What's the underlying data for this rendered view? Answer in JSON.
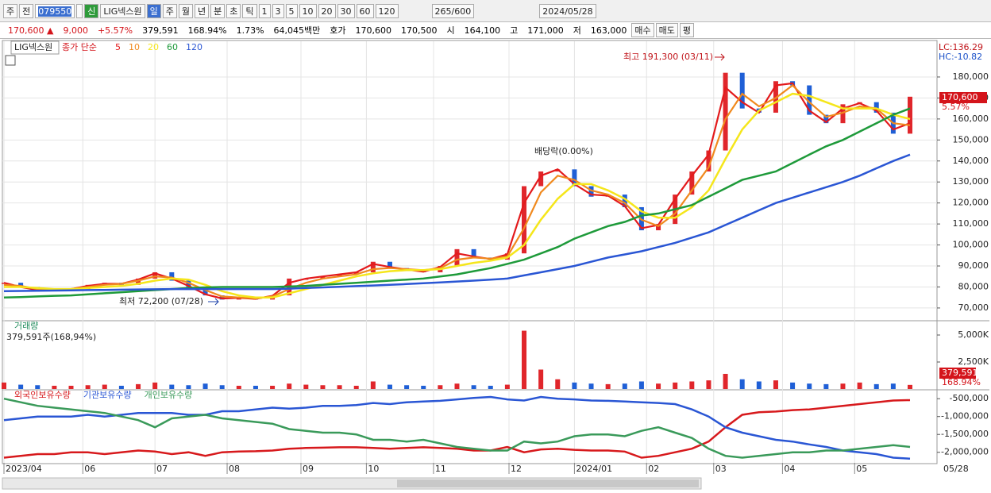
{
  "toolbar": {
    "market": "주",
    "prev": "전",
    "code": "079550",
    "badge": "신",
    "name": "LIG넥스원",
    "periods": [
      "일",
      "주",
      "월",
      "년",
      "분",
      "초",
      "틱"
    ],
    "intervals": [
      "1",
      "3",
      "5",
      "10",
      "20",
      "30",
      "60",
      "120"
    ],
    "count": "265",
    "max": "/600",
    "date": "2024/05/28"
  },
  "infobar": {
    "price": "170,600 ▲",
    "change": "9,000",
    "rate": "+5.57%",
    "volume": "379,591",
    "vol_rate": "168.94%",
    "turnover": "1.73%",
    "amount": "64,045백만",
    "ask_label": "호가",
    "ask": "170,600",
    "bid": "170,500",
    "open_label": "시",
    "open": "164,100",
    "high_label": "고",
    "high": "171,000",
    "low_label": "저",
    "low": "163,000",
    "buy": "매수",
    "sell": "매도",
    "avg": "평"
  },
  "chart_data": [
    {
      "type": "candle-line",
      "legend_prefix": "종가 단순",
      "xlim": [
        0,
        54
      ],
      "xticks": [
        {
          "value": 0,
          "label": "2023/04"
        },
        {
          "value": 4.7,
          "label": "06"
        },
        {
          "value": 9.0,
          "label": "07"
        },
        {
          "value": 13.3,
          "label": "08"
        },
        {
          "value": 17.7,
          "label": "09"
        },
        {
          "value": 21.6,
          "label": "10"
        },
        {
          "value": 25.6,
          "label": "11"
        },
        {
          "value": 30.1,
          "label": "12"
        },
        {
          "value": 34.0,
          "label": "2024/01"
        },
        {
          "value": 38.3,
          "label": "02"
        },
        {
          "value": 42.3,
          "label": "03"
        },
        {
          "value": 46.4,
          "label": "04"
        },
        {
          "value": 50.7,
          "label": "05"
        }
      ],
      "x_end_label": "05/28",
      "ylim": [
        64300,
        197000
      ],
      "yticks": [
        {
          "value": 70000,
          "label": "70,000"
        },
        {
          "value": 80000,
          "label": "80,000"
        },
        {
          "value": 90000,
          "label": "90,000"
        },
        {
          "value": 100000,
          "label": "100,000"
        },
        {
          "value": 110000,
          "label": "110,000"
        },
        {
          "value": 120000,
          "label": "120,000"
        },
        {
          "value": 130000,
          "label": "130,000"
        },
        {
          "value": 140000,
          "label": "140,000"
        },
        {
          "value": 150000,
          "label": "150,000"
        },
        {
          "value": 160000,
          "label": "160,000"
        },
        {
          "value": 170000,
          "label": "170,000"
        },
        {
          "value": 180000,
          "label": "180,000"
        }
      ],
      "grid": true,
      "annotations": {
        "high": "최고 191,300 (03/11)",
        "low": "최저 72,200 (07/28)",
        "dividend": "배당락(0.00%)"
      },
      "right_labels": {
        "lc": "LC:136.29",
        "hc": "HC:-10.82",
        "last": "170,600",
        "rate": "5.57%"
      },
      "series": [
        {
          "name": "LIG넥스원",
          "up_color": "#e0262b",
          "down_color": "#1f5fd6",
          "values": [
            82000,
            80000,
            78000,
            79000,
            79000,
            81000,
            82000,
            81000,
            84000,
            87000,
            83000,
            80000,
            76000,
            74000,
            75000,
            74000,
            76000,
            84000,
            84000,
            85000,
            86000,
            87000,
            92000,
            89000,
            88000,
            87000,
            90000,
            98000,
            94000,
            93000,
            96000,
            128000,
            135000,
            136000,
            128000,
            123000,
            124000,
            118000,
            107000,
            110000,
            124000,
            135000,
            145000,
            182000,
            165000,
            163000,
            178000,
            176000,
            162000,
            158000,
            167000,
            168000,
            163000,
            153000,
            170600
          ]
        },
        {
          "name": "5",
          "color": "#e31a1c",
          "values": [
            82000,
            80000,
            78500,
            78800,
            79000,
            80500,
            81500,
            81500,
            83500,
            86500,
            84000,
            80500,
            76500,
            74500,
            74800,
            74300,
            75800,
            82000,
            84000,
            85000,
            86000,
            87000,
            91000,
            89500,
            88300,
            87300,
            89500,
            96000,
            94500,
            93300,
            95500,
            120000,
            133000,
            136000,
            129000,
            124000,
            123500,
            118500,
            108000,
            109500,
            122000,
            133000,
            143000,
            175000,
            168000,
            163000,
            176000,
            177000,
            164000,
            158500,
            165000,
            167500,
            164000,
            155000,
            158000
          ]
        },
        {
          "name": "10",
          "color": "#f0891d",
          "values": [
            81000,
            80500,
            79000,
            78500,
            79000,
            80000,
            81000,
            81500,
            83000,
            85000,
            84500,
            82000,
            78500,
            75500,
            75000,
            74500,
            75500,
            79000,
            82000,
            84000,
            85000,
            86000,
            88500,
            89000,
            88500,
            88000,
            89000,
            93000,
            94000,
            93500,
            94500,
            108000,
            125000,
            133000,
            131000,
            126000,
            124000,
            120000,
            112000,
            109000,
            115000,
            126000,
            137000,
            160000,
            172000,
            166000,
            170000,
            176000,
            168000,
            161000,
            163000,
            166000,
            165000,
            158000,
            157000
          ]
        },
        {
          "name": "20",
          "color": "#f5e61b",
          "values": [
            80000,
            80000,
            79500,
            79000,
            79000,
            79500,
            80000,
            80500,
            81500,
            83000,
            84000,
            83500,
            81000,
            78000,
            76000,
            75000,
            75000,
            77000,
            79000,
            81000,
            83000,
            85000,
            86500,
            87500,
            88000,
            88000,
            88500,
            90000,
            91500,
            92500,
            94000,
            100000,
            112000,
            122000,
            129000,
            129000,
            126000,
            122000,
            116000,
            113000,
            113000,
            118000,
            126000,
            141000,
            155000,
            164000,
            168000,
            172000,
            171000,
            168000,
            165000,
            165000,
            165000,
            162000,
            160000
          ]
        },
        {
          "name": "60",
          "color": "#1e9a3a",
          "values": [
            75000,
            75200,
            75500,
            75800,
            76000,
            76500,
            77000,
            77500,
            78000,
            78500,
            79000,
            79500,
            79800,
            80000,
            80000,
            80000,
            80000,
            80200,
            80500,
            81000,
            81500,
            82000,
            82500,
            83000,
            83500,
            84000,
            85000,
            86000,
            87500,
            89000,
            91000,
            93000,
            96000,
            99000,
            103000,
            106000,
            109000,
            111000,
            114000,
            115000,
            117000,
            119000,
            123000,
            127000,
            131000,
            133000,
            135000,
            139000,
            143000,
            147000,
            150000,
            154000,
            158000,
            162000,
            165000
          ]
        },
        {
          "name": "120",
          "color": "#2a56d4",
          "values": [
            78000,
            78100,
            78200,
            78300,
            78400,
            78500,
            78600,
            78700,
            78800,
            78900,
            79000,
            79000,
            79000,
            79000,
            79000,
            79000,
            79000,
            79200,
            79500,
            79800,
            80100,
            80400,
            80700,
            81000,
            81400,
            81800,
            82200,
            82600,
            83000,
            83500,
            84000,
            85500,
            87000,
            88500,
            90000,
            92000,
            94000,
            95500,
            97000,
            99000,
            101000,
            103500,
            106000,
            109500,
            113000,
            116500,
            120000,
            122500,
            125000,
            127500,
            130000,
            133000,
            136500,
            140000,
            143000
          ]
        }
      ]
    },
    {
      "type": "volume",
      "title": "거래량",
      "subtitle": "379,591주(168,94%)",
      "ylim": [
        0,
        6250000
      ],
      "yticks": [
        {
          "value": 2500000,
          "label": "2,500K"
        },
        {
          "value": 5000000,
          "label": "5,000K"
        }
      ],
      "right_labels": {
        "last": "379,591",
        "rate": "168.94%"
      },
      "up_color": "#e0262b",
      "down_color": "#1f5fd6",
      "values": [
        600000,
        400000,
        350000,
        300000,
        300000,
        350000,
        400000,
        300000,
        450000,
        600000,
        400000,
        350000,
        500000,
        350000,
        300000,
        300000,
        300000,
        500000,
        400000,
        350000,
        350000,
        300000,
        700000,
        400000,
        350000,
        300000,
        350000,
        500000,
        350000,
        300000,
        400000,
        5400000,
        1800000,
        900000,
        600000,
        500000,
        450000,
        500000,
        700000,
        500000,
        600000,
        700000,
        800000,
        1400000,
        900000,
        700000,
        800000,
        600000,
        500000,
        450000,
        500000,
        600000,
        450000,
        500000,
        379591
      ]
    },
    {
      "type": "line",
      "ylim": [
        -2295000,
        -273000
      ],
      "yticks": [
        {
          "value": -500000,
          "label": "-500,000"
        },
        {
          "value": -1000000,
          "label": "-1,000,000"
        },
        {
          "value": -1500000,
          "label": "-1,500,000"
        },
        {
          "value": -2000000,
          "label": "-2,000,000"
        }
      ],
      "series": [
        {
          "name": "외국인보유수량",
          "color": "#d7191c",
          "values": [
            -2150000,
            -2100000,
            -2050000,
            -2050000,
            -2000000,
            -2000000,
            -2050000,
            -2000000,
            -1950000,
            -1980000,
            -2050000,
            -2000000,
            -2100000,
            -2000000,
            -1980000,
            -1970000,
            -1950000,
            -1900000,
            -1880000,
            -1870000,
            -1860000,
            -1860000,
            -1880000,
            -1900000,
            -1880000,
            -1860000,
            -1880000,
            -1900000,
            -1950000,
            -1950000,
            -1850000,
            -2000000,
            -1920000,
            -1900000,
            -1930000,
            -1950000,
            -1950000,
            -1980000,
            -2150000,
            -2100000,
            -2000000,
            -1900000,
            -1700000,
            -1300000,
            -950000,
            -880000,
            -860000,
            -820000,
            -800000,
            -750000,
            -700000,
            -650000,
            -600000,
            -550000,
            -540000
          ]
        },
        {
          "name": "기관보유수량",
          "color": "#2a56d4",
          "values": [
            -1100000,
            -1050000,
            -1000000,
            -1000000,
            -1000000,
            -950000,
            -1000000,
            -950000,
            -900000,
            -900000,
            -900000,
            -950000,
            -950000,
            -850000,
            -850000,
            -800000,
            -750000,
            -780000,
            -750000,
            -700000,
            -700000,
            -680000,
            -620000,
            -650000,
            -600000,
            -580000,
            -560000,
            -520000,
            -480000,
            -450000,
            -520000,
            -550000,
            -450000,
            -500000,
            -520000,
            -550000,
            -560000,
            -580000,
            -600000,
            -620000,
            -650000,
            -800000,
            -1000000,
            -1300000,
            -1450000,
            -1550000,
            -1650000,
            -1700000,
            -1780000,
            -1850000,
            -1950000,
            -2000000,
            -2050000,
            -2150000,
            -2180000
          ]
        },
        {
          "name": "개인보유수량",
          "color": "#3a9a5a",
          "values": [
            -500000,
            -600000,
            -700000,
            -750000,
            -800000,
            -850000,
            -900000,
            -1000000,
            -1100000,
            -1300000,
            -1050000,
            -1000000,
            -950000,
            -1050000,
            -1100000,
            -1150000,
            -1200000,
            -1350000,
            -1400000,
            -1450000,
            -1450000,
            -1500000,
            -1650000,
            -1650000,
            -1700000,
            -1650000,
            -1750000,
            -1850000,
            -1900000,
            -1950000,
            -1950000,
            -1700000,
            -1750000,
            -1700000,
            -1550000,
            -1500000,
            -1500000,
            -1550000,
            -1400000,
            -1300000,
            -1450000,
            -1600000,
            -1900000,
            -2100000,
            -2150000,
            -2100000,
            -2050000,
            -2000000,
            -2000000,
            -1950000,
            -1950000,
            -1900000,
            -1850000,
            -1800000,
            -1850000
          ]
        }
      ]
    }
  ]
}
